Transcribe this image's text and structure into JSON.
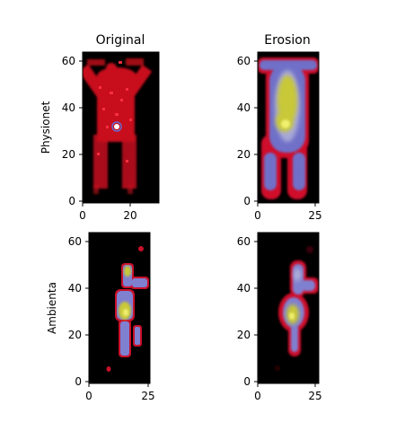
{
  "chart_data": [
    {
      "type": "heatmap",
      "title": "Original",
      "ylabel": "Physionet",
      "xlim": [
        0,
        32
      ],
      "ylim": [
        0,
        64
      ],
      "xticks": [
        "0",
        "20"
      ],
      "yticks": [
        "0",
        "20",
        "40",
        "60"
      ],
      "colormap": "gist_stern-like",
      "subject": "physionet"
    },
    {
      "type": "heatmap",
      "title": "Erosion",
      "ylabel": "",
      "xlim": [
        0,
        27
      ],
      "ylim": [
        0,
        64
      ],
      "xticks": [
        "0",
        "25"
      ],
      "yticks": [
        "0",
        "20",
        "40",
        "60"
      ],
      "colormap": "gist_stern-like",
      "subject": "physionet"
    },
    {
      "type": "heatmap",
      "title": "",
      "ylabel": "Ambienta",
      "xlim": [
        0,
        27
      ],
      "ylim": [
        0,
        64
      ],
      "xticks": [
        "0",
        "25"
      ],
      "yticks": [
        "0",
        "20",
        "40",
        "60"
      ],
      "colormap": "gist_stern-like",
      "subject": "ambienta"
    },
    {
      "type": "heatmap",
      "title": "",
      "ylabel": "",
      "xlim": [
        0,
        27
      ],
      "ylim": [
        0,
        64
      ],
      "xticks": [
        "0",
        "25"
      ],
      "yticks": [
        "0",
        "20",
        "40",
        "60"
      ],
      "colormap": "gist_stern-like",
      "subject": "ambienta"
    }
  ]
}
